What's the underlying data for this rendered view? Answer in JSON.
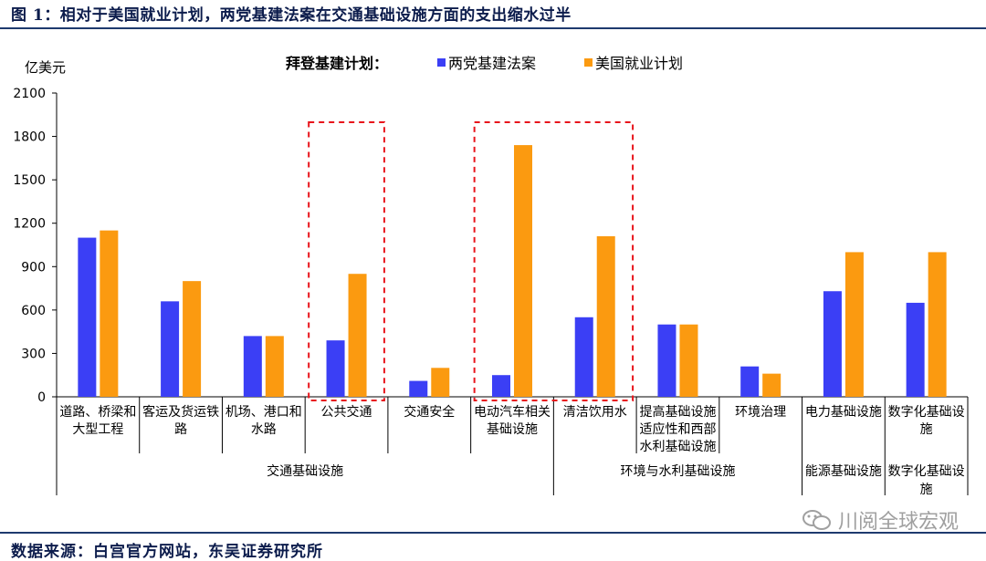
{
  "header": {
    "title": "图 1：相对于美国就业计划，两党基建法案在交通基础设施方面的支出缩水过半"
  },
  "footer": {
    "source": "数据来源：白宫官方网站，东吴证券研究所",
    "watermark": "川阅全球宏观"
  },
  "chart_data": {
    "type": "bar",
    "title": "",
    "ylabel": "亿美元",
    "ylim": [
      0,
      2100
    ],
    "yticks": [
      0,
      300,
      600,
      900,
      1200,
      1500,
      1800,
      2100
    ],
    "legend": {
      "title": "拜登基建计划：",
      "placement": "top-center"
    },
    "categories": [
      "道路、桥梁和大型工程",
      "客运及货运铁路",
      "机场、港口和水路",
      "公共交通",
      "交通安全",
      "电动汽车相关基础设施",
      "清洁饮用水",
      "提高基础设施适应性和西部水利基础设施",
      "环境治理",
      "电力基础设施",
      "数字化基础设施"
    ],
    "category_label_lines": [
      [
        "道路、桥梁和",
        "大型工程"
      ],
      [
        "客运及货运铁",
        "路"
      ],
      [
        "机场、港口和",
        "水路"
      ],
      [
        "公共交通"
      ],
      [
        "交通安全"
      ],
      [
        "电动汽车相关",
        "基础设施"
      ],
      [
        "清洁饮用水"
      ],
      [
        "提高基础设施",
        "适应性和西部",
        "水利基础设施"
      ],
      [
        "环境治理"
      ],
      [
        "电力基础设施"
      ],
      [
        "数字化基础设",
        "施"
      ]
    ],
    "groups": [
      {
        "label": "交通基础设施",
        "categories": [
          0,
          1,
          2,
          3,
          4,
          5
        ]
      },
      {
        "label": "环境与水利基础设施",
        "categories": [
          6,
          7,
          8
        ]
      },
      {
        "label": "能源基础设施",
        "categories": [
          9
        ]
      },
      {
        "label": "数字化基础设施",
        "label_lines": [
          "数字化基础设",
          "施"
        ],
        "categories": [
          10
        ]
      }
    ],
    "series": [
      {
        "name": "两党基建法案",
        "color": "#3b3ff5",
        "values": [
          1100,
          660,
          420,
          390,
          110,
          150,
          550,
          500,
          210,
          730,
          650
        ]
      },
      {
        "name": "美国就业计划",
        "color": "#fb9a10",
        "values": [
          1150,
          800,
          420,
          850,
          200,
          1740,
          1110,
          500,
          160,
          1000,
          1000
        ]
      }
    ],
    "highlight_boxes": [
      {
        "categories": [
          3
        ]
      },
      {
        "categories": [
          5,
          6
        ]
      }
    ],
    "grid": false
  }
}
